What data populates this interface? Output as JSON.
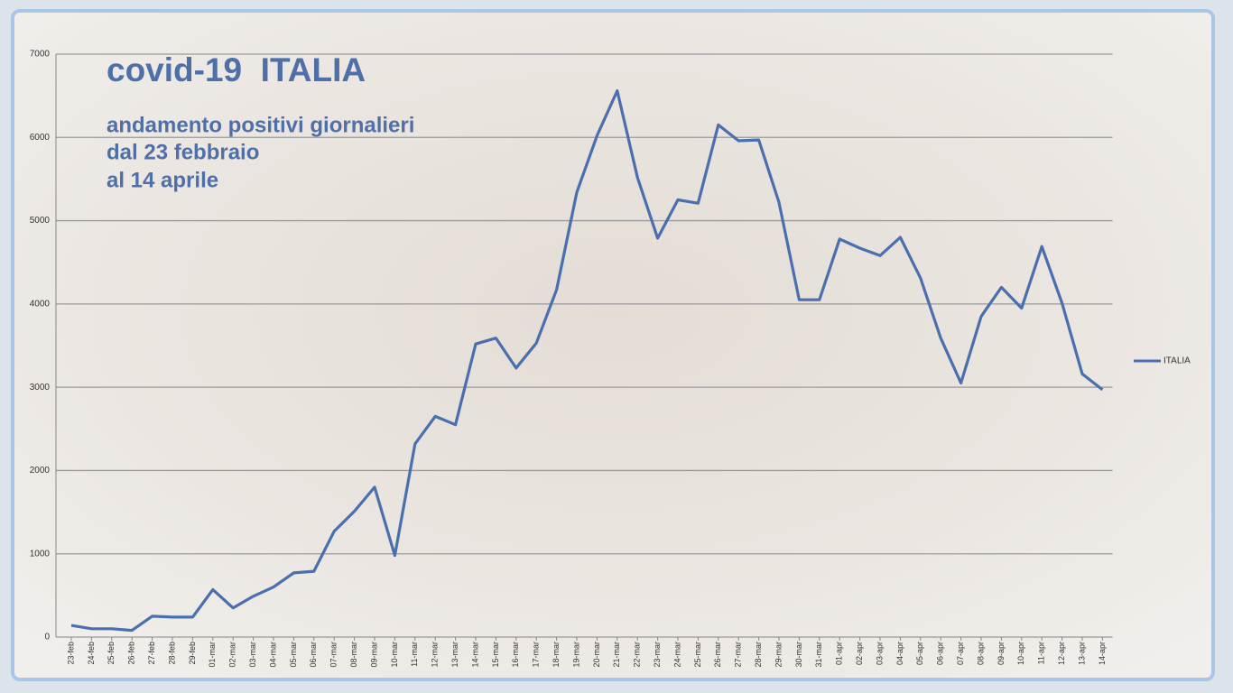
{
  "chart_data": {
    "type": "line",
    "title": "covid-19  ITALIA",
    "subtitle": [
      "andamento positivi giornalieri",
      "dal 23 febbraio",
      "al 14 aprile"
    ],
    "categories": [
      "23-feb",
      "24-feb",
      "25-feb",
      "26-feb",
      "27-feb",
      "28-feb",
      "29-feb",
      "01-mar",
      "02-mar",
      "03-mar",
      "04-mar",
      "05-mar",
      "06-mar",
      "07-mar",
      "08-mar",
      "09-mar",
      "10-mar",
      "11-mar",
      "12-mar",
      "13-mar",
      "14-mar",
      "15-mar",
      "16-mar",
      "17-mar",
      "18-mar",
      "19-mar",
      "20-mar",
      "21-mar",
      "22-mar",
      "23-mar",
      "24-mar",
      "25-mar",
      "26-mar",
      "27-mar",
      "28-mar",
      "29-mar",
      "30-mar",
      "31-mar",
      "01-apr",
      "02-apr",
      "03-apr",
      "04-apr",
      "05-apr",
      "06-apr",
      "07-apr",
      "08-apr",
      "09-apr",
      "10-apr",
      "11-apr",
      "12-apr",
      "13-apr",
      "14-apr"
    ],
    "series": [
      {
        "name": "ITALIA",
        "color": "#4a6fae",
        "values": [
          140,
          100,
          100,
          80,
          250,
          240,
          240,
          570,
          350,
          490,
          600,
          770,
          790,
          1270,
          1510,
          1800,
          980,
          2320,
          2650,
          2550,
          3520,
          3590,
          3230,
          3530,
          4170,
          5340,
          6020,
          6560,
          5520,
          4790,
          5250,
          5210,
          6150,
          5960,
          5970,
          5220,
          4050,
          4050,
          4780,
          4670,
          4580,
          4800,
          4310,
          3590,
          3050,
          3850,
          4200,
          3950,
          4690,
          4010,
          3160,
          2970
        ]
      }
    ],
    "ylim": [
      0,
      7000
    ],
    "yticks": [
      0,
      1000,
      2000,
      3000,
      4000,
      5000,
      6000,
      7000
    ],
    "grid": true,
    "legend": "right"
  }
}
